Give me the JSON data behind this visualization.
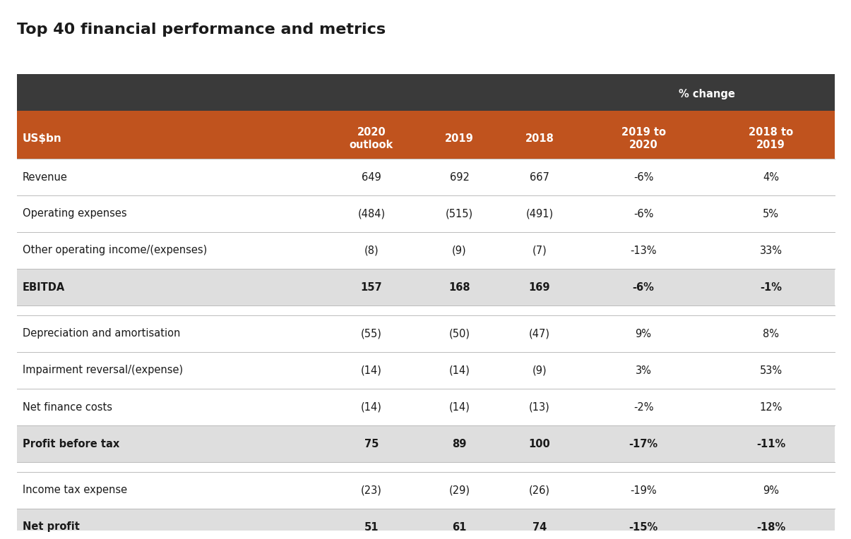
{
  "title": "Top 40 financial performance and metrics",
  "header_dark_bg": "#3a3a3a",
  "header_orange_bg": "#c0531e",
  "highlight_row_bg": "#dedede",
  "white_bg": "#ffffff",
  "line_color": "#bbbbbb",
  "col_headers_row2": [
    "US$bn",
    "2020\noutlook",
    "2019",
    "2018",
    "2019 to\n2020",
    "2018 to\n2019"
  ],
  "rows": [
    {
      "label": "Revenue",
      "values": [
        "649",
        "692",
        "667",
        "-6%",
        "4%"
      ],
      "bold": false,
      "highlight": false,
      "top_gap": false
    },
    {
      "label": "Operating expenses",
      "values": [
        "(484)",
        "(515)",
        "(491)",
        "-6%",
        "5%"
      ],
      "bold": false,
      "highlight": false,
      "top_gap": false
    },
    {
      "label": "Other operating income/(expenses)",
      "values": [
        "(8)",
        "(9)",
        "(7)",
        "-13%",
        "33%"
      ],
      "bold": false,
      "highlight": false,
      "top_gap": false
    },
    {
      "label": "EBITDA",
      "values": [
        "157",
        "168",
        "169",
        "-6%",
        "-1%"
      ],
      "bold": true,
      "highlight": true,
      "top_gap": false
    },
    {
      "label": "Depreciation and amortisation",
      "values": [
        "(55)",
        "(50)",
        "(47)",
        "9%",
        "8%"
      ],
      "bold": false,
      "highlight": false,
      "top_gap": true
    },
    {
      "label": "Impairment reversal/(expense)",
      "values": [
        "(14)",
        "(14)",
        "(9)",
        "3%",
        "53%"
      ],
      "bold": false,
      "highlight": false,
      "top_gap": false
    },
    {
      "label": "Net finance costs",
      "values": [
        "(14)",
        "(14)",
        "(13)",
        "-2%",
        "12%"
      ],
      "bold": false,
      "highlight": false,
      "top_gap": false
    },
    {
      "label": "Profit before tax",
      "values": [
        "75",
        "89",
        "100",
        "-17%",
        "-11%"
      ],
      "bold": true,
      "highlight": true,
      "top_gap": false
    },
    {
      "label": "Income tax expense",
      "values": [
        "(23)",
        "(29)",
        "(26)",
        "-19%",
        "9%"
      ],
      "bold": false,
      "highlight": false,
      "top_gap": true
    },
    {
      "label": "Net profit",
      "values": [
        "51",
        "61",
        "74",
        "-15%",
        "-18%"
      ],
      "bold": true,
      "highlight": true,
      "top_gap": false
    }
  ],
  "figsize": [
    11.86,
    7.42
  ],
  "dpi": 100
}
